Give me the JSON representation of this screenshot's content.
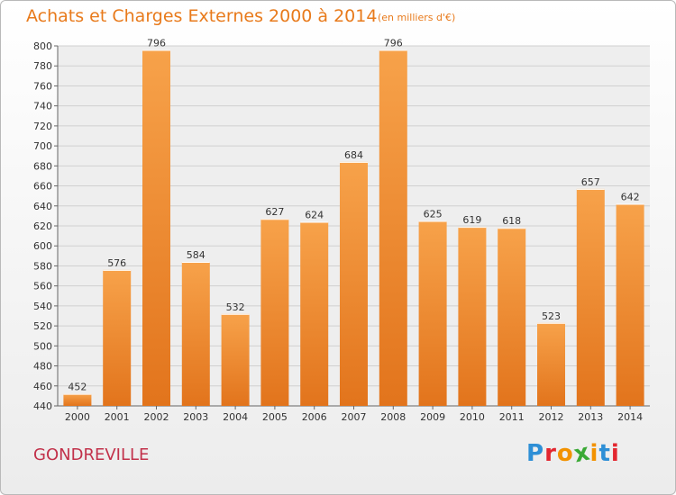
{
  "chart_data": {
    "type": "bar",
    "title": "Achats et Charges Externes 2000 à 2014",
    "subtitle": "(en milliers d'€)",
    "categories": [
      "2000",
      "2001",
      "2002",
      "2003",
      "2004",
      "2005",
      "2006",
      "2007",
      "2008",
      "2009",
      "2010",
      "2011",
      "2012",
      "2013",
      "2014"
    ],
    "values": [
      452,
      576,
      796,
      584,
      532,
      627,
      624,
      684,
      796,
      625,
      619,
      618,
      523,
      657,
      642
    ],
    "ylim": [
      440,
      800
    ],
    "ytick_step": 20,
    "grid": true,
    "bar_color": "#f2912f",
    "xlabel": "",
    "ylabel": ""
  },
  "footer": {
    "place_name": "GONDREVILLE",
    "logo": {
      "letters": [
        "P",
        "r",
        "o",
        "x",
        "i",
        "t",
        "i"
      ],
      "colors": [
        "#2e8fd6",
        "#e3262f",
        "#f29200",
        "#3aa935",
        "#f29200",
        "#2e8fd6",
        "#e3262f"
      ]
    }
  }
}
